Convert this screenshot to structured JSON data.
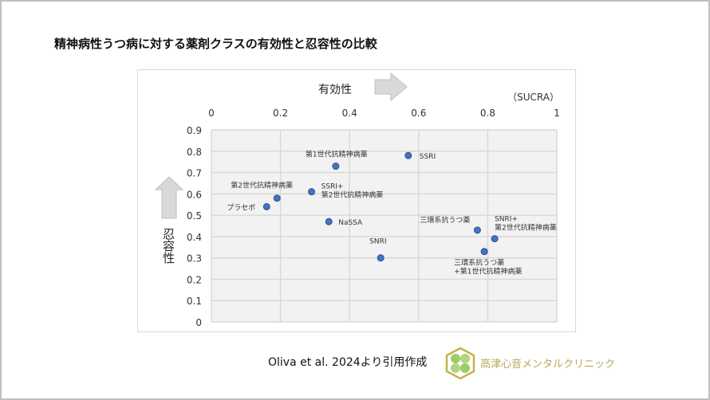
{
  "title": "精神病性うつ病に対する薬剤クラスの有効性と忍容性の比較",
  "citation": "Oliva et al. 2024より引用作成",
  "clinic_name": "高津心音メンタルクリニック",
  "chart_data": {
    "type": "scatter",
    "title": "",
    "xlabel": "有効性",
    "ylabel": "忍容性",
    "x_unit": "（SUCRA）",
    "xlim": [
      0,
      1
    ],
    "ylim": [
      0,
      0.9
    ],
    "x_axis_position": "top",
    "xticks": [
      "0",
      "0.2",
      "0.4",
      "0.6",
      "0.8",
      "1"
    ],
    "yticks": [
      "0",
      "0.1",
      "0.2",
      "0.3",
      "0.4",
      "0.5",
      "0.6",
      "0.7",
      "0.8",
      "0.9"
    ],
    "grid": true,
    "marker_color": "#4472c4",
    "points": [
      {
        "label": "SSRI",
        "x": 0.57,
        "y": 0.78
      },
      {
        "label": "第1世代抗精神病薬",
        "x": 0.36,
        "y": 0.73
      },
      {
        "label": "SSRI+\n第2世代抗精神病薬",
        "x": 0.29,
        "y": 0.61
      },
      {
        "label": "第2世代抗精神病薬",
        "x": 0.19,
        "y": 0.58
      },
      {
        "label": "プラセボ",
        "x": 0.16,
        "y": 0.54
      },
      {
        "label": "NaSSA",
        "x": 0.34,
        "y": 0.47
      },
      {
        "label": "SNRI",
        "x": 0.49,
        "y": 0.3
      },
      {
        "label": "三環系抗うつ薬",
        "x": 0.77,
        "y": 0.43
      },
      {
        "label": "SNRI+\n第2世代抗精神病薬",
        "x": 0.82,
        "y": 0.39
      },
      {
        "label": "三環系抗うつ薬\n+第1世代抗精神病薬",
        "x": 0.79,
        "y": 0.33
      }
    ]
  }
}
